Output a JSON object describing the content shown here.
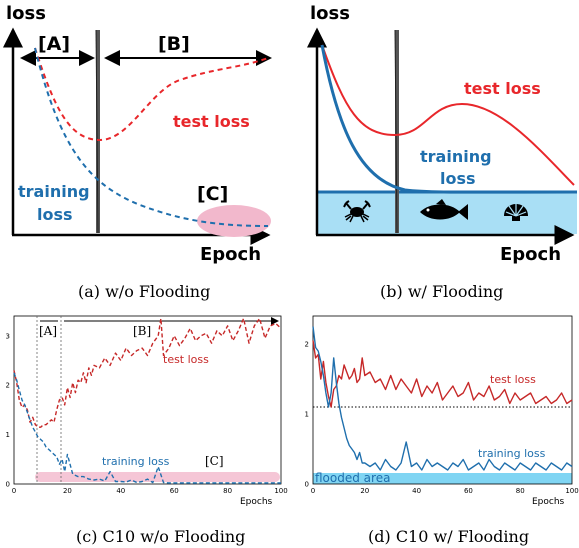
{
  "panels": {
    "a": {
      "caption": "(a) w/o Flooding",
      "y_label": "loss",
      "x_label": "Epoch",
      "region_a": "[A]",
      "region_b": "[B]",
      "region_c": "[C]",
      "test_label": "test loss",
      "train_label_1": "training",
      "train_label_2": "loss"
    },
    "b": {
      "caption": "(b) w/ Flooding",
      "y_label": "loss",
      "x_label": "Epoch",
      "test_label": "test loss",
      "train_label_1": "training",
      "train_label_2": "loss"
    },
    "c": {
      "caption": "(c) C10 w/o Flooding",
      "x_label": "Epochs",
      "region_a": "[A]",
      "region_b": "[B]",
      "region_c": "[C]",
      "test_label": "test loss",
      "train_label": "training loss"
    },
    "d": {
      "caption": "(d) C10 w/ Flooding",
      "x_label": "Epochs",
      "test_label": "test loss",
      "train_label": "training loss",
      "flood_label": "flooded area"
    }
  },
  "colors": {
    "test": "#e8272b",
    "train": "#1f6fad",
    "flood": "#a9dff5",
    "flood_dark": "#55c7ef",
    "pink": "#f2b8cc"
  },
  "chart_data": [
    {
      "type": "line",
      "panel": "c",
      "xlim": [
        0,
        100
      ],
      "ylim": [
        0,
        3.4
      ],
      "x_ticks": [
        0,
        20,
        40,
        60,
        80,
        100
      ],
      "y_ticks": [
        0,
        1,
        2,
        3
      ],
      "region_boundaries": [
        7,
        15
      ],
      "series": [
        {
          "name": "test loss",
          "style": "dashed",
          "x": [
            0,
            1,
            2,
            3,
            4,
            5,
            6,
            7,
            8,
            9,
            10,
            11,
            12,
            13,
            14,
            15,
            16,
            17,
            18,
            19,
            20,
            21,
            22,
            23,
            24,
            25,
            26,
            27,
            28,
            29,
            30,
            32,
            34,
            36,
            38,
            40,
            42,
            44,
            46,
            48,
            50,
            52,
            54,
            55,
            56,
            58,
            60,
            62,
            64,
            66,
            68,
            70,
            72,
            74,
            76,
            78,
            80,
            82,
            84,
            86,
            88,
            90,
            92,
            94,
            96,
            98,
            100
          ],
          "y": [
            2.3,
            2.05,
            1.7,
            1.55,
            1.6,
            1.5,
            1.25,
            1.35,
            1.2,
            1.15,
            1.15,
            1.2,
            1.2,
            1.25,
            1.3,
            1.25,
            1.5,
            1.7,
            1.75,
            1.6,
            1.95,
            1.75,
            2.05,
            1.85,
            2.1,
            2.05,
            2.25,
            2.05,
            2.35,
            2.2,
            2.4,
            2.35,
            2.55,
            2.4,
            2.65,
            2.5,
            2.75,
            2.6,
            2.7,
            2.75,
            2.6,
            2.85,
            3.0,
            3.35,
            2.6,
            2.75,
            3.0,
            2.8,
            2.95,
            3.15,
            2.9,
            3.0,
            3.05,
            2.85,
            3.1,
            3.0,
            3.2,
            2.9,
            3.1,
            3.35,
            2.85,
            3.2,
            3.35,
            2.95,
            3.2,
            3.25,
            3.15
          ]
        },
        {
          "name": "training loss",
          "style": "dashed",
          "x": [
            0,
            1,
            2,
            3,
            4,
            5,
            6,
            7,
            8,
            9,
            10,
            11,
            12,
            13,
            14,
            15,
            16,
            17,
            18,
            19,
            20,
            22,
            24,
            26,
            28,
            30,
            32,
            34,
            36,
            38,
            40,
            42,
            44,
            46,
            48,
            50,
            52,
            54,
            56,
            58,
            60,
            65,
            70,
            75,
            80,
            85,
            90,
            95,
            100
          ],
          "y": [
            2.25,
            2.1,
            1.9,
            1.7,
            1.6,
            1.45,
            1.3,
            1.15,
            1.05,
            0.95,
            0.9,
            0.85,
            0.75,
            0.7,
            0.65,
            0.6,
            0.55,
            0.4,
            0.5,
            0.25,
            0.6,
            0.2,
            0.15,
            0.15,
            0.1,
            0.08,
            0.1,
            0.06,
            0.25,
            0.05,
            0.05,
            0.04,
            0.08,
            0.03,
            0.05,
            0.1,
            0.03,
            0.35,
            0.03,
            0.02,
            0.02,
            0.02,
            0.02,
            0.02,
            0.02,
            0.02,
            0.02,
            0.02,
            0.02
          ]
        }
      ]
    },
    {
      "type": "line",
      "panel": "d",
      "xlim": [
        0,
        100
      ],
      "ylim": [
        0,
        2.4
      ],
      "x_ticks": [
        0,
        20,
        40,
        60,
        80,
        100
      ],
      "y_ticks": [
        0,
        1,
        2
      ],
      "flood_level": 0.2,
      "reference_line": 1.1,
      "series": [
        {
          "name": "test loss",
          "style": "solid",
          "x": [
            0,
            1,
            2,
            3,
            4,
            5,
            6,
            7,
            8,
            9,
            10,
            11,
            12,
            13,
            14,
            15,
            16,
            17,
            18,
            19,
            20,
            22,
            24,
            26,
            28,
            30,
            32,
            34,
            36,
            38,
            40,
            42,
            44,
            46,
            48,
            50,
            52,
            54,
            56,
            58,
            60,
            62,
            64,
            66,
            68,
            70,
            72,
            74,
            76,
            78,
            80,
            82,
            84,
            86,
            88,
            90,
            92,
            94,
            96,
            98,
            100
          ],
          "y": [
            2.05,
            1.8,
            1.85,
            1.5,
            1.75,
            1.45,
            1.25,
            1.1,
            1.35,
            1.4,
            1.55,
            1.5,
            1.7,
            1.6,
            1.5,
            1.55,
            1.65,
            1.45,
            1.5,
            1.8,
            1.55,
            1.6,
            1.45,
            1.5,
            1.35,
            1.55,
            1.35,
            1.5,
            1.4,
            1.3,
            1.5,
            1.25,
            1.4,
            1.3,
            1.45,
            1.2,
            1.3,
            1.4,
            1.25,
            1.3,
            1.45,
            1.2,
            1.3,
            1.25,
            1.4,
            1.2,
            1.25,
            1.35,
            1.15,
            1.3,
            1.2,
            1.25,
            1.3,
            1.15,
            1.2,
            1.25,
            1.15,
            1.2,
            1.3,
            1.15,
            1.2
          ]
        },
        {
          "name": "training loss",
          "style": "solid",
          "x": [
            0,
            1,
            2,
            3,
            4,
            5,
            6,
            7,
            8,
            9,
            10,
            11,
            12,
            13,
            14,
            15,
            16,
            17,
            18,
            19,
            20,
            22,
            24,
            26,
            28,
            30,
            32,
            34,
            36,
            38,
            40,
            42,
            44,
            46,
            48,
            50,
            52,
            54,
            56,
            58,
            60,
            62,
            64,
            66,
            68,
            70,
            72,
            74,
            76,
            78,
            80,
            82,
            84,
            86,
            88,
            90,
            92,
            94,
            96,
            98,
            100
          ],
          "y": [
            2.25,
            1.95,
            1.9,
            1.75,
            1.55,
            1.3,
            1.1,
            1.3,
            1.8,
            1.45,
            1.15,
            0.95,
            0.8,
            0.65,
            0.55,
            0.5,
            0.45,
            0.35,
            0.45,
            0.3,
            0.3,
            0.25,
            0.3,
            0.2,
            0.35,
            0.25,
            0.2,
            0.3,
            0.6,
            0.25,
            0.3,
            0.2,
            0.35,
            0.25,
            0.3,
            0.25,
            0.2,
            0.3,
            0.25,
            0.35,
            0.2,
            0.25,
            0.3,
            0.2,
            0.35,
            0.25,
            0.2,
            0.3,
            0.25,
            0.2,
            0.3,
            0.25,
            0.2,
            0.3,
            0.25,
            0.2,
            0.3,
            0.25,
            0.2,
            0.3,
            0.25
          ]
        }
      ]
    }
  ]
}
